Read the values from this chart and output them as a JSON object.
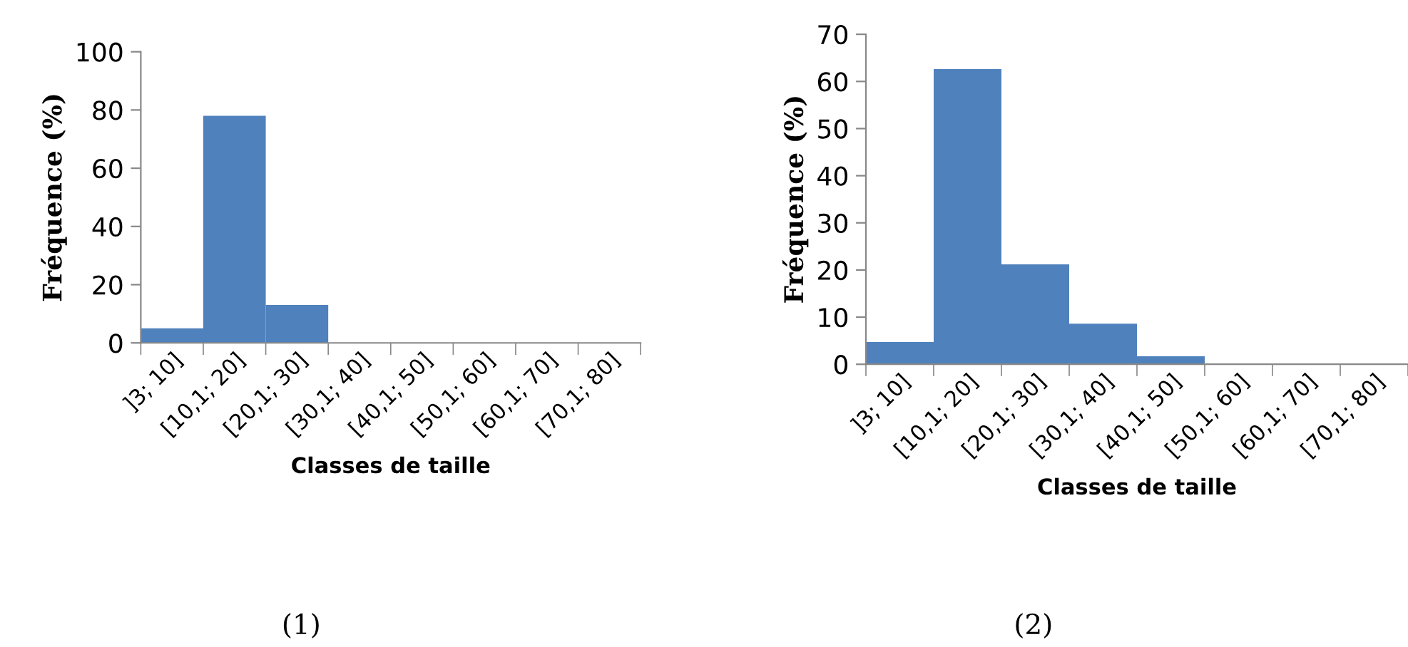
{
  "chart_data": [
    {
      "type": "bar",
      "xlabel": "Classes de taille",
      "ylabel": "Fréquence (%)",
      "categories": [
        "]3; 10]",
        "[10,1; 20]",
        "[20,1; 30]",
        "[30,1; 40]",
        "[40,1; 50]",
        "[50,1; 60]",
        "[60,1; 70]",
        "[70,1; 80]"
      ],
      "values": [
        5,
        78,
        13,
        0,
        0,
        0,
        0,
        0
      ],
      "color": "#4f81bd",
      "ylim": [
        0,
        100
      ],
      "yticks": [
        0,
        20,
        40,
        60,
        80,
        100
      ],
      "grid": false,
      "annotations": [
        "(1)"
      ]
    },
    {
      "type": "bar",
      "xlabel": "Classes de taille",
      "ylabel": "Fréquence (%)",
      "categories": [
        "]3; 10]",
        "[10,1; 20]",
        "[20,1; 30]",
        "[30,1; 40]",
        "[40,1; 50]",
        "[50,1; 60]",
        "[60,1; 70]",
        "[70,1; 80]"
      ],
      "values": [
        4.7,
        62.6,
        21.2,
        8.6,
        1.7,
        0,
        0,
        0
      ],
      "color": "#4f81bd",
      "ylim": [
        0,
        70
      ],
      "yticks": [
        0,
        10,
        20,
        30,
        40,
        50,
        60,
        70
      ],
      "grid": false,
      "annotations": [
        "(2)"
      ]
    }
  ]
}
